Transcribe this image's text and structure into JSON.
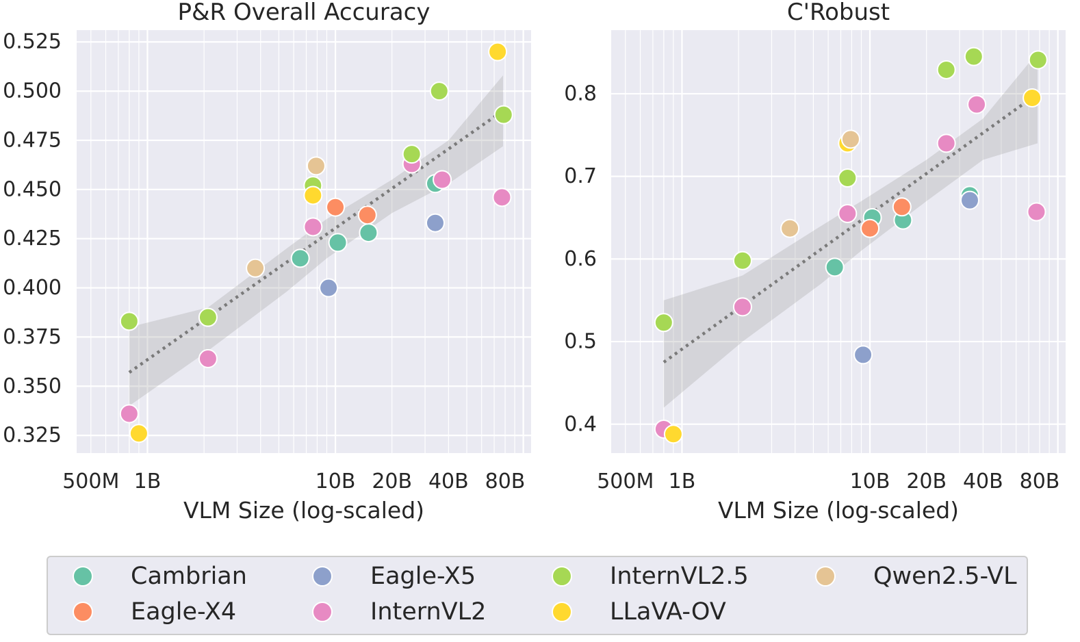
{
  "chart_data": [
    {
      "type": "scatter",
      "title": "P&R Overall Accuracy",
      "xlabel": "VLM Size (log-scaled)",
      "ylabel": "",
      "xscale": "log",
      "xlim": [
        0.42,
        110
      ],
      "ylim": [
        0.316,
        0.531
      ],
      "xticks": [
        {
          "v": 0.5,
          "label": "500M"
        },
        {
          "v": 1,
          "label": "1B"
        },
        {
          "v": 10,
          "label": "10B"
        },
        {
          "v": 20,
          "label": "20B"
        },
        {
          "v": 40,
          "label": "40B"
        },
        {
          "v": 80,
          "label": "80B"
        }
      ],
      "yticks": [
        {
          "v": 0.325,
          "label": "0.325"
        },
        {
          "v": 0.35,
          "label": "0.350"
        },
        {
          "v": 0.375,
          "label": "0.375"
        },
        {
          "v": 0.4,
          "label": "0.400"
        },
        {
          "v": 0.425,
          "label": "0.425"
        },
        {
          "v": 0.45,
          "label": "0.450"
        },
        {
          "v": 0.475,
          "label": "0.475"
        },
        {
          "v": 0.5,
          "label": "0.500"
        },
        {
          "v": 0.525,
          "label": "0.525"
        }
      ],
      "trend": {
        "x": [
          0.8,
          78
        ],
        "y": [
          0.357,
          0.49
        ]
      },
      "band": {
        "x": [
          0.8,
          2.1,
          5.5,
          9,
          20,
          40,
          78
        ],
        "upper": [
          0.38,
          0.39,
          0.42,
          0.435,
          0.455,
          0.475,
          0.508
        ],
        "lower": [
          0.34,
          0.368,
          0.398,
          0.415,
          0.438,
          0.453,
          0.472
        ]
      },
      "series": [
        {
          "name": "Cambrian",
          "color": "#66c2a5",
          "points": [
            [
              6.5,
              0.415
            ],
            [
              10.3,
              0.423
            ],
            [
              15,
              0.428
            ],
            [
              34,
              0.453
            ]
          ]
        },
        {
          "name": "Eagle-X4",
          "color": "#fc8d62",
          "points": [
            [
              10,
              0.441
            ],
            [
              14.8,
              0.437
            ]
          ]
        },
        {
          "name": "Eagle-X5",
          "color": "#8da0cb",
          "points": [
            [
              9.2,
              0.4
            ],
            [
              34,
              0.433
            ]
          ]
        },
        {
          "name": "InternVL2",
          "color": "#e78ac3",
          "points": [
            [
              0.8,
              0.336
            ],
            [
              2.1,
              0.364
            ],
            [
              7.6,
              0.431
            ],
            [
              25.5,
              0.463
            ],
            [
              37,
              0.455
            ],
            [
              77,
              0.446
            ]
          ]
        },
        {
          "name": "InternVL2.5",
          "color": "#a6d854",
          "points": [
            [
              0.8,
              0.383
            ],
            [
              2.1,
              0.385
            ],
            [
              7.6,
              0.452
            ],
            [
              25.5,
              0.468
            ],
            [
              35.7,
              0.5
            ],
            [
              78.5,
              0.488
            ]
          ]
        },
        {
          "name": "LLaVA-OV",
          "color": "#ffd92f",
          "points": [
            [
              0.9,
              0.326
            ],
            [
              7.6,
              0.447
            ],
            [
              73,
              0.52
            ]
          ]
        },
        {
          "name": "Qwen2.5-VL",
          "color": "#e5c494",
          "points": [
            [
              3.75,
              0.41
            ],
            [
              7.9,
              0.462
            ]
          ]
        }
      ]
    },
    {
      "type": "scatter",
      "title": "C'Robust",
      "xlabel": "VLM Size (log-scaled)",
      "ylabel": "",
      "xscale": "log",
      "xlim": [
        0.42,
        110
      ],
      "ylim": [
        0.365,
        0.877
      ],
      "xticks": [
        {
          "v": 0.5,
          "label": "500M"
        },
        {
          "v": 1,
          "label": "1B"
        },
        {
          "v": 10,
          "label": "10B"
        },
        {
          "v": 20,
          "label": "20B"
        },
        {
          "v": 40,
          "label": "40B"
        },
        {
          "v": 80,
          "label": "80B"
        }
      ],
      "yticks": [
        {
          "v": 0.4,
          "label": "0.4"
        },
        {
          "v": 0.5,
          "label": "0.5"
        },
        {
          "v": 0.6,
          "label": "0.6"
        },
        {
          "v": 0.7,
          "label": "0.7"
        },
        {
          "v": 0.8,
          "label": "0.8"
        }
      ],
      "trend": {
        "x": [
          0.8,
          78
        ],
        "y": [
          0.475,
          0.8
        ]
      },
      "band": {
        "x": [
          0.8,
          2.1,
          5.5,
          9,
          20,
          40,
          78
        ],
        "upper": [
          0.55,
          0.58,
          0.64,
          0.67,
          0.72,
          0.77,
          0.85
        ],
        "lower": [
          0.42,
          0.5,
          0.57,
          0.61,
          0.67,
          0.72,
          0.74
        ]
      },
      "series": [
        {
          "name": "Cambrian",
          "color": "#66c2a5",
          "points": [
            [
              6.5,
              0.59
            ],
            [
              10.3,
              0.65
            ],
            [
              15,
              0.647
            ],
            [
              34,
              0.677
            ]
          ]
        },
        {
          "name": "Eagle-X4",
          "color": "#fc8d62",
          "points": [
            [
              10,
              0.637
            ],
            [
              14.8,
              0.663
            ]
          ]
        },
        {
          "name": "Eagle-X5",
          "color": "#8da0cb",
          "points": [
            [
              9.2,
              0.484
            ],
            [
              34,
              0.671
            ]
          ]
        },
        {
          "name": "InternVL2",
          "color": "#e78ac3",
          "points": [
            [
              0.8,
              0.394
            ],
            [
              2.1,
              0.542
            ],
            [
              7.6,
              0.655
            ],
            [
              25.5,
              0.74
            ],
            [
              37,
              0.787
            ],
            [
              77,
              0.657
            ]
          ]
        },
        {
          "name": "InternVL2.5",
          "color": "#a6d854",
          "points": [
            [
              0.8,
              0.523
            ],
            [
              2.1,
              0.598
            ],
            [
              7.6,
              0.698
            ],
            [
              25.5,
              0.829
            ],
            [
              35.7,
              0.845
            ],
            [
              78.5,
              0.841
            ]
          ]
        },
        {
          "name": "LLaVA-OV",
          "color": "#ffd92f",
          "points": [
            [
              0.9,
              0.388
            ],
            [
              7.6,
              0.74
            ],
            [
              73,
              0.795
            ]
          ]
        },
        {
          "name": "Qwen2.5-VL",
          "color": "#e5c494",
          "points": [
            [
              3.75,
              0.637
            ],
            [
              7.9,
              0.745
            ]
          ]
        }
      ]
    }
  ],
  "legend": {
    "items": [
      {
        "label": "Cambrian",
        "color": "#66c2a5"
      },
      {
        "label": "Eagle-X5",
        "color": "#8da0cb"
      },
      {
        "label": "InternVL2.5",
        "color": "#a6d854"
      },
      {
        "label": "Qwen2.5-VL",
        "color": "#e5c494"
      },
      {
        "label": "Eagle-X4",
        "color": "#fc8d62"
      },
      {
        "label": "InternVL2",
        "color": "#e78ac3"
      },
      {
        "label": "LLaVA-OV",
        "color": "#ffd92f"
      }
    ]
  }
}
